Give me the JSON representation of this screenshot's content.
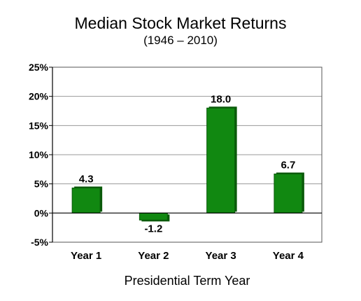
{
  "chart_data": {
    "type": "bar",
    "title": "Median Stock Market Returns",
    "subtitle": "(1946 – 2010)",
    "xlabel": "Presidential Term Year",
    "ylabel": "",
    "categories": [
      "Year 1",
      "Year 2",
      "Year 3",
      "Year 4"
    ],
    "values": [
      4.3,
      -1.2,
      18.0,
      6.7
    ],
    "data_labels": [
      "4.3",
      "-1.2",
      "18.0",
      "6.7"
    ],
    "ylim": [
      -5,
      25
    ],
    "yticks": [
      -5,
      0,
      5,
      10,
      15,
      20,
      25
    ],
    "ytick_labels": [
      "-5%",
      "0%",
      "5%",
      "10%",
      "15%",
      "20%",
      "25%"
    ],
    "grid": true,
    "legend": "none",
    "colors": {
      "bar": "#118811",
      "bar_dark": "#0a5a0a",
      "grid": "#999999"
    }
  }
}
